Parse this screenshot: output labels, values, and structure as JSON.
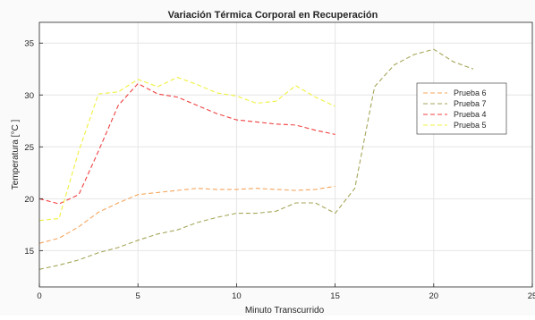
{
  "chart_data": {
    "type": "line",
    "title": "Variación  Térmica Corporal en Recuperación",
    "xlabel": "Minuto Transcurrido",
    "ylabel": "Temperatura [°C ]",
    "xlim": [
      0,
      25
    ],
    "ylim": [
      11.5,
      37
    ],
    "xticks": [
      0,
      5,
      10,
      15,
      20,
      25
    ],
    "yticks": [
      15,
      20,
      25,
      30,
      35
    ],
    "grid": true,
    "legend_position": "right",
    "series": [
      {
        "name": "Prueba 6",
        "color": "#f5a55c",
        "x": [
          0,
          1,
          2,
          3,
          4,
          5,
          6,
          7,
          8,
          9,
          10,
          11,
          12,
          13,
          14,
          15
        ],
        "y": [
          15.7,
          16.2,
          17.3,
          18.7,
          19.6,
          20.4,
          20.6,
          20.8,
          21.0,
          20.9,
          20.9,
          21.0,
          20.9,
          20.8,
          20.9,
          21.2
        ]
      },
      {
        "name": "Prueba 7",
        "color": "#a6a65a",
        "x": [
          0,
          1,
          2,
          3,
          4,
          5,
          6,
          7,
          8,
          9,
          10,
          11,
          12,
          13,
          14,
          15,
          16,
          17,
          18,
          19,
          20,
          21,
          22
        ],
        "y": [
          13.2,
          13.6,
          14.1,
          14.8,
          15.3,
          16.0,
          16.6,
          17.0,
          17.7,
          18.2,
          18.6,
          18.6,
          18.8,
          19.6,
          19.6,
          18.6,
          21.0,
          30.8,
          32.9,
          33.9,
          34.4,
          33.2,
          32.5
        ]
      },
      {
        "name": "Prueba 4",
        "color": "#f04040",
        "x": [
          0,
          1,
          2,
          3,
          4,
          5,
          6,
          7,
          8,
          9,
          10,
          11,
          12,
          13,
          14,
          15
        ],
        "y": [
          20.0,
          19.5,
          20.4,
          24.6,
          29.0,
          31.1,
          30.1,
          29.8,
          29.0,
          28.2,
          27.6,
          27.4,
          27.2,
          27.1,
          26.6,
          26.2
        ]
      },
      {
        "name": "Prueba 5",
        "color": "#f0f040",
        "x": [
          0,
          1,
          2,
          3,
          4,
          5,
          6,
          7,
          8,
          9,
          10,
          11,
          12,
          13,
          14,
          15
        ],
        "y": [
          17.9,
          18.1,
          24.6,
          30.1,
          30.3,
          31.5,
          30.8,
          31.7,
          31.0,
          30.2,
          29.9,
          29.2,
          29.4,
          30.9,
          29.8,
          28.9
        ]
      }
    ]
  }
}
